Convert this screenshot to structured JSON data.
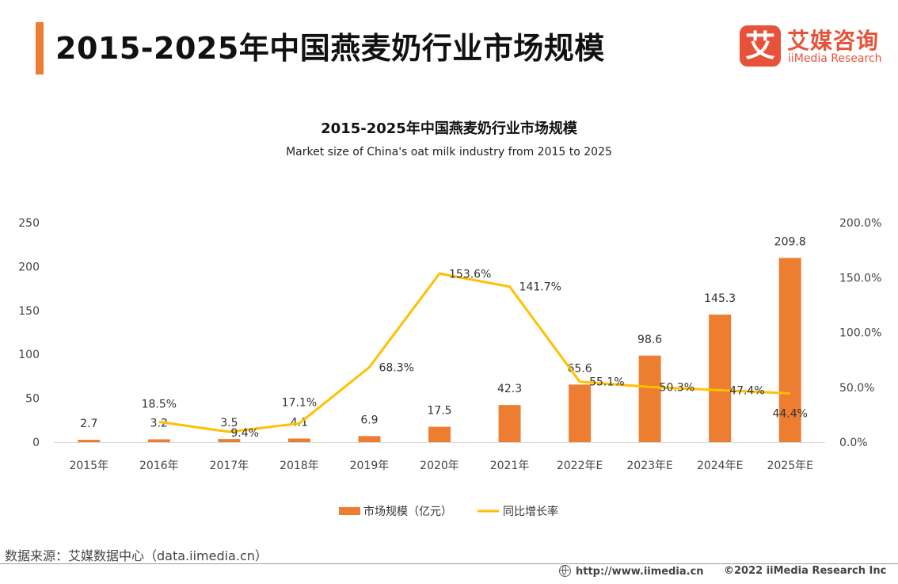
{
  "header": {
    "title": "2015-2025年中国燕麦奶行业市场规模"
  },
  "logo": {
    "mark": "艾",
    "name_cn": "艾媒咨询",
    "name_en": "iiMedia Research"
  },
  "colors": {
    "accent": "#ED7D31",
    "bar": "#ED7D31",
    "line": "#FFC000",
    "brand": "#E8523A"
  },
  "chart_data": {
    "type": "bar",
    "title": "2015-2025年中国燕麦奶行业市场规模",
    "subtitle": "Market size of China's oat milk industry from 2015 to 2025",
    "categories": [
      "2015年",
      "2016年",
      "2017年",
      "2018年",
      "2019年",
      "2020年",
      "2021年",
      "2022年E",
      "2023年E",
      "2024年E",
      "2025年E"
    ],
    "series": [
      {
        "name": "市场规模（亿元）",
        "type": "bar",
        "axis": "left",
        "values": [
          2.7,
          3.2,
          3.5,
          4.1,
          6.9,
          17.5,
          42.3,
          65.6,
          98.6,
          145.3,
          209.8
        ],
        "labels": [
          "2.7",
          "3.2",
          "3.5",
          "4.1",
          "6.9",
          "17.5",
          "42.3",
          "65.6",
          "98.6",
          "145.3",
          "209.8"
        ]
      },
      {
        "name": "同比增长率",
        "type": "line",
        "axis": "right",
        "values": [
          null,
          18.5,
          9.4,
          17.1,
          68.3,
          153.6,
          141.7,
          55.1,
          50.3,
          47.4,
          44.4
        ],
        "labels": [
          "",
          "18.5%",
          "9.4%",
          "17.1%",
          "68.3%",
          "153.6%",
          "141.7%",
          "55.1%",
          "50.3%",
          "47.4%",
          "44.4%"
        ]
      }
    ],
    "ylim": [
      0,
      250
    ],
    "yticks": [
      "0",
      "50",
      "100",
      "150",
      "200",
      "250"
    ],
    "y2lim": [
      0,
      200
    ],
    "y2ticks": [
      "0.0%",
      "50.0%",
      "100.0%",
      "150.0%",
      "200.0%"
    ],
    "legend_position": "bottom-center",
    "grid": false
  },
  "source": "数据来源：艾媒数据中心（data.iimedia.cn）",
  "footer": {
    "url": "http://www.iimedia.cn",
    "copyright": "©2022  iiMedia Research  Inc"
  }
}
